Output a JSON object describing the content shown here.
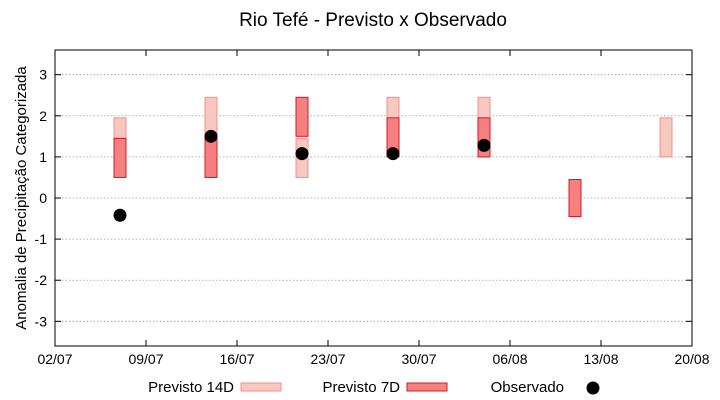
{
  "chart_data": {
    "type": "range-bar-scatter",
    "title": "Rio Tefé - Previsto x Observado",
    "ylabel": "Anomalia de Precipitação Categorizada",
    "xlabel": "",
    "ylim": [
      -3.6,
      3.6
    ],
    "yticks": [
      "-3",
      "-2",
      "-1",
      "0",
      "1",
      "2",
      "3"
    ],
    "ytick_values": [
      -3,
      -2,
      -1,
      0,
      1,
      2,
      3
    ],
    "xlim": [
      "2024-07-02",
      "2024-08-20"
    ],
    "xticks": [
      "02/07",
      "09/07",
      "16/07",
      "23/07",
      "30/07",
      "06/08",
      "13/08",
      "20/08"
    ],
    "xtick_values": [
      "2024-07-02",
      "2024-07-09",
      "2024-07-16",
      "2024-07-23",
      "2024-07-30",
      "2024-08-06",
      "2024-08-13",
      "2024-08-20"
    ],
    "grid": "horizontal-dotted",
    "legend_position": "bottom",
    "colors": {
      "previsto14_fill": "#f8c8c0",
      "previsto14_stroke": "#f0908a",
      "previsto7_fill": "#f48080",
      "previsto7_stroke": "#d81820",
      "observado": "#000000"
    },
    "series": [
      {
        "name": "Previsto 14D",
        "kind": "range",
        "points": [
          {
            "x": "2024-07-07",
            "low": 0.5,
            "high": 1.95
          },
          {
            "x": "2024-07-14",
            "low": 0.5,
            "high": 2.45
          },
          {
            "x": "2024-07-21",
            "low": 0.5,
            "high": 1.45
          },
          {
            "x": "2024-07-28",
            "low": 1.0,
            "high": 2.45
          },
          {
            "x": "2024-08-04",
            "low": 1.0,
            "high": 2.45
          },
          {
            "x": "2024-08-18",
            "low": 1.0,
            "high": 1.95
          }
        ]
      },
      {
        "name": "Previsto 7D",
        "kind": "range",
        "points": [
          {
            "x": "2024-07-07",
            "low": 0.5,
            "high": 1.45
          },
          {
            "x": "2024-07-14",
            "low": 0.5,
            "high": 1.45
          },
          {
            "x": "2024-07-21",
            "low": 1.5,
            "high": 2.45
          },
          {
            "x": "2024-07-28",
            "low": 1.0,
            "high": 1.95
          },
          {
            "x": "2024-08-04",
            "low": 1.0,
            "high": 1.95
          },
          {
            "x": "2024-08-11",
            "low": -0.45,
            "high": 0.45
          }
        ]
      },
      {
        "name": "Observado",
        "kind": "scatter",
        "points": [
          {
            "x": "2024-07-07",
            "y": -0.42
          },
          {
            "x": "2024-07-14",
            "y": 1.5
          },
          {
            "x": "2024-07-21",
            "y": 1.08
          },
          {
            "x": "2024-07-28",
            "y": 1.08
          },
          {
            "x": "2024-08-04",
            "y": 1.28
          }
        ]
      }
    ]
  }
}
